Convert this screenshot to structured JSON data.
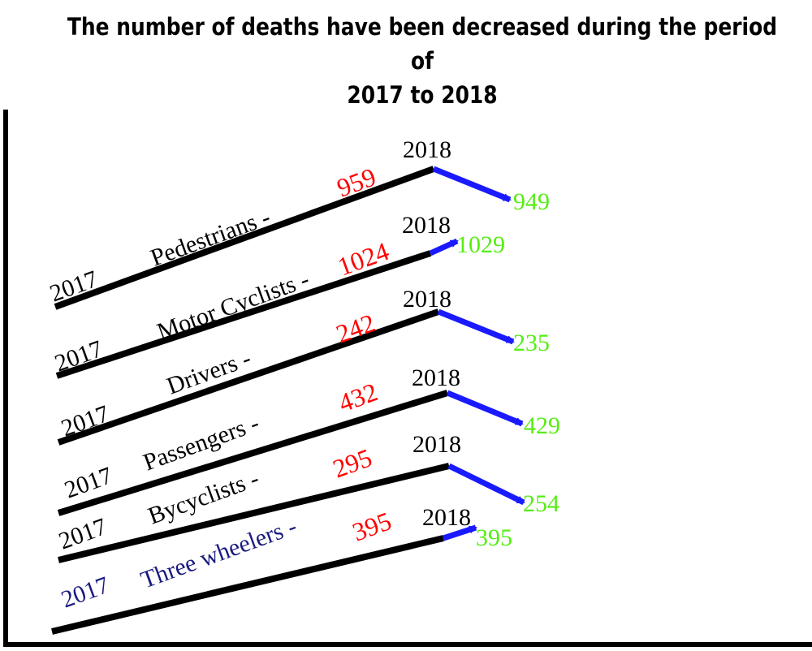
{
  "title_line1": "The number of deaths have been decreased during the period of",
  "title_line2": "2017 to 2018",
  "colors": {
    "base_line": "#000000",
    "trend_line": "#1a1aff",
    "value_2017": "#ff0000",
    "value_2018": "#55ee11",
    "highlight_text": "#1a1a80"
  },
  "rows": [
    {
      "id": "pedestrians",
      "year_start": "2017",
      "category": "Pedestrians -",
      "value_2017": "959",
      "year_end": "2018",
      "value_2018": "949"
    },
    {
      "id": "motor-cyclists",
      "year_start": "2017",
      "category": "Motor Cyclists -",
      "value_2017": "1024",
      "year_end": "2018",
      "value_2018": "1029"
    },
    {
      "id": "drivers",
      "year_start": "2017",
      "category": "Drivers -",
      "value_2017": "242",
      "year_end": "2018",
      "value_2018": "235"
    },
    {
      "id": "passengers",
      "year_start": "2017",
      "category": "Passengers -",
      "value_2017": "432",
      "year_end": "2018",
      "value_2018": "429"
    },
    {
      "id": "bycyclists",
      "year_start": "2017",
      "category": "Bycyclists -",
      "value_2017": "295",
      "year_end": "2018",
      "value_2018": "254"
    },
    {
      "id": "three-wheelers",
      "year_start": "2017",
      "category": "Three wheelers -",
      "value_2017": "395",
      "year_end": "2018",
      "value_2018": "395"
    }
  ]
}
